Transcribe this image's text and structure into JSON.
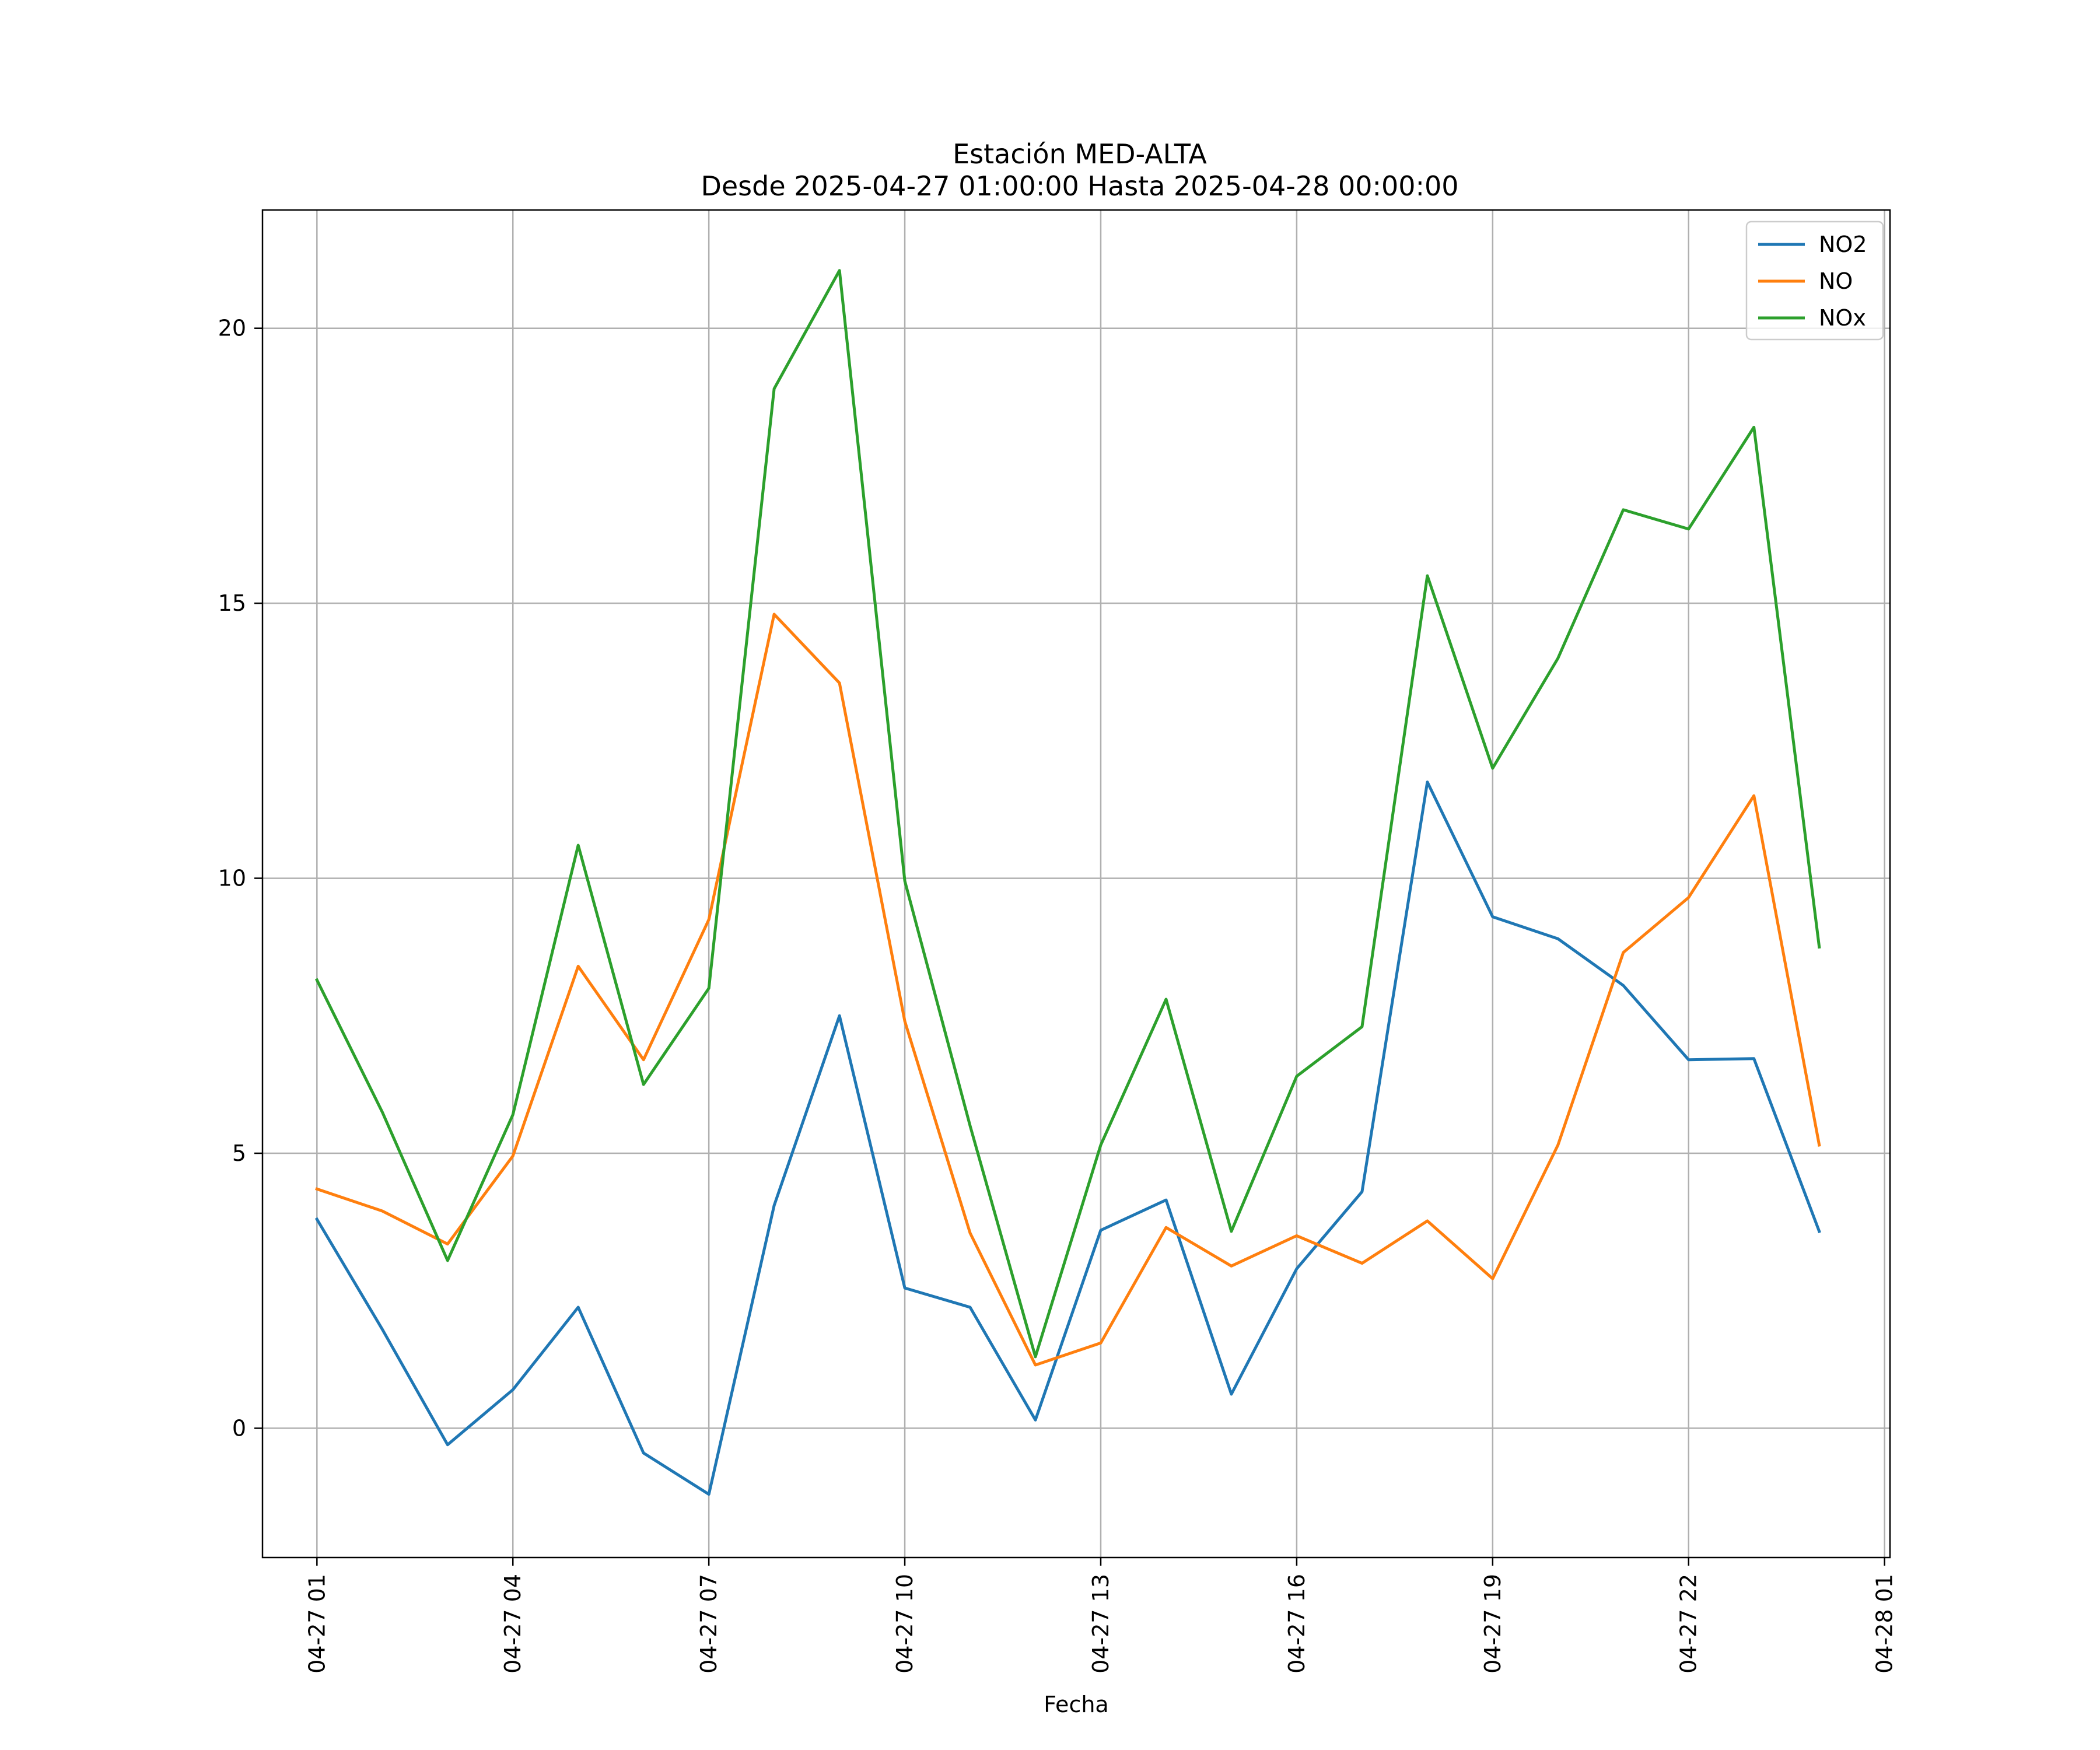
{
  "chart_data": {
    "type": "line",
    "title": "Estación MED-ALTA",
    "subtitle": "Desde 2025-04-27 01:00:00 Hasta 2025-04-28 00:00:00",
    "xlabel": "Fecha",
    "ylabel": "",
    "x": [
      "04-27 01",
      "04-27 02",
      "04-27 03",
      "04-27 04",
      "04-27 05",
      "04-27 06",
      "04-27 07",
      "04-27 08",
      "04-27 09",
      "04-27 10",
      "04-27 11",
      "04-27 12",
      "04-27 13",
      "04-27 14",
      "04-27 15",
      "04-27 16",
      "04-27 17",
      "04-27 18",
      "04-27 19",
      "04-27 20",
      "04-27 21",
      "04-27 22",
      "04-27 23",
      "04-28 00"
    ],
    "xticks": [
      "04-27 01",
      "04-27 04",
      "04-27 07",
      "04-27 10",
      "04-27 13",
      "04-27 16",
      "04-27 19",
      "04-27 22",
      "04-28 01"
    ],
    "xlim": [
      "04-27 00:10",
      "04-28 01:05"
    ],
    "yticks": [
      0,
      5,
      10,
      15,
      20
    ],
    "ylim": [
      -2.35,
      22.15
    ],
    "grid": true,
    "legend": "top-right",
    "series": [
      {
        "name": "NO2",
        "color": "#1f77b4",
        "values": [
          3.8,
          1.8,
          -0.3,
          0.7,
          2.2,
          -0.45,
          -1.2,
          4.05,
          7.5,
          2.55,
          2.2,
          0.15,
          3.6,
          4.15,
          0.62,
          2.9,
          4.3,
          11.75,
          9.3,
          8.9,
          8.05,
          6.7,
          6.72,
          3.58
        ]
      },
      {
        "name": "NO",
        "color": "#ff7f0e",
        "values": [
          4.35,
          3.95,
          3.35,
          4.95,
          8.4,
          6.7,
          9.25,
          14.8,
          13.55,
          7.4,
          3.55,
          1.15,
          1.55,
          3.65,
          2.95,
          3.5,
          3.0,
          3.77,
          2.72,
          5.15,
          8.65,
          9.65,
          11.5,
          5.15
        ]
      },
      {
        "name": "NOx",
        "color": "#2ca02c",
        "values": [
          8.15,
          5.75,
          3.05,
          5.7,
          10.6,
          6.25,
          8.0,
          18.9,
          21.05,
          9.95,
          5.5,
          1.3,
          5.15,
          7.8,
          3.58,
          6.4,
          7.3,
          15.5,
          12.0,
          14.0,
          16.7,
          16.35,
          18.2,
          8.75
        ]
      }
    ]
  }
}
